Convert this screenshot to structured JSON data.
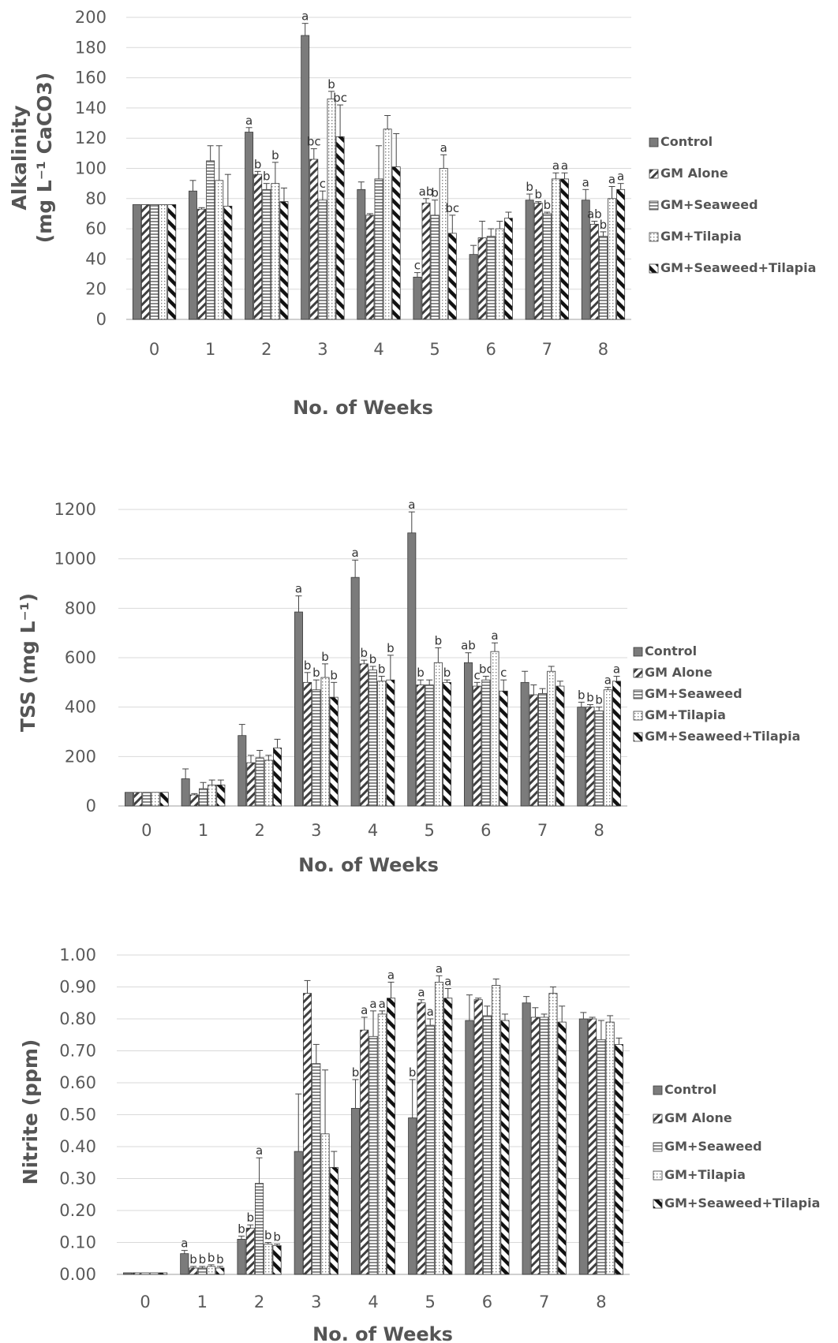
{
  "series_names": [
    "Control",
    "GM Alone",
    "GM+Seaweed",
    "GM+Tilapia",
    "GM+Seaweed+Tilapia"
  ],
  "chart_data": [
    {
      "type": "bar",
      "ylabel_line1": "Alkalinity",
      "ylabel_line2": "(mg L⁻¹ CaCO3)",
      "xlabel": "No. of Weeks",
      "categories": [
        "0",
        "1",
        "2",
        "3",
        "4",
        "5",
        "6",
        "7",
        "8"
      ],
      "ylim": [
        0,
        200
      ],
      "yticks": [
        0,
        20,
        40,
        60,
        80,
        100,
        120,
        140,
        160,
        180,
        200
      ],
      "tick_decimals": 0,
      "legend_position": "right",
      "grid": true,
      "series": [
        {
          "name": "Control",
          "values": [
            76,
            85,
            124,
            188,
            86,
            28,
            43,
            79,
            79
          ],
          "errors": [
            0,
            7,
            3,
            8,
            5,
            3,
            6,
            4,
            7
          ],
          "labels": [
            "",
            "",
            "a",
            "a",
            "",
            "c",
            "",
            "b",
            "a"
          ]
        },
        {
          "name": "GM Alone",
          "values": [
            76,
            73,
            96,
            106,
            69,
            77,
            54,
            77,
            63
          ],
          "errors": [
            0,
            1,
            2,
            7,
            1,
            3,
            11,
            1,
            2
          ],
          "labels": [
            "",
            "",
            "b",
            "bc",
            "",
            "ab",
            "",
            "b",
            "ab"
          ]
        },
        {
          "name": "GM+Seaweed",
          "values": [
            76,
            105,
            86,
            79,
            93,
            69,
            55,
            70,
            55
          ],
          "errors": [
            0,
            10,
            4,
            6,
            22,
            10,
            5,
            1,
            3
          ],
          "labels": [
            "",
            "",
            "b",
            "c",
            "",
            "b",
            "",
            "b",
            "b"
          ]
        },
        {
          "name": "GM+Tilapia",
          "values": [
            76,
            92,
            90,
            146,
            126,
            100,
            60,
            93,
            80
          ],
          "errors": [
            0,
            23,
            14,
            5,
            9,
            9,
            5,
            4,
            8
          ],
          "labels": [
            "",
            "",
            "b",
            "b",
            "",
            "a",
            "",
            "a",
            "a"
          ]
        },
        {
          "name": "GM+Seaweed+Tilapia",
          "values": [
            76,
            75,
            78,
            121,
            101,
            57,
            67,
            93,
            86
          ],
          "errors": [
            0,
            21,
            9,
            21,
            22,
            12,
            4,
            4,
            4
          ],
          "labels": [
            "",
            "",
            "",
            "bc",
            "",
            "bc",
            "",
            "a",
            "a"
          ]
        }
      ]
    },
    {
      "type": "bar",
      "ylabel": "TSS (mg L⁻¹)",
      "xlabel": "No. of Weeks",
      "categories": [
        "0",
        "1",
        "2",
        "3",
        "4",
        "5",
        "6",
        "7",
        "8"
      ],
      "ylim": [
        0,
        1200
      ],
      "yticks": [
        0,
        200,
        400,
        600,
        800,
        1000,
        1200
      ],
      "tick_decimals": 0,
      "legend_position": "right",
      "grid": true,
      "series": [
        {
          "name": "Control",
          "values": [
            55,
            110,
            285,
            785,
            925,
            1105,
            580,
            500,
            400
          ],
          "errors": [
            0,
            40,
            45,
            65,
            70,
            85,
            40,
            45,
            20
          ],
          "labels": [
            "",
            "",
            "",
            "a",
            "a",
            "a",
            "ab",
            "",
            "b"
          ]
        },
        {
          "name": "GM Alone",
          "values": [
            55,
            45,
            175,
            500,
            575,
            490,
            485,
            450,
            400
          ],
          "errors": [
            0,
            5,
            30,
            40,
            15,
            20,
            15,
            40,
            10
          ],
          "labels": [
            "",
            "",
            "",
            "b",
            "b",
            "b",
            "c",
            "",
            "b"
          ]
        },
        {
          "name": "GM+Seaweed",
          "values": [
            55,
            70,
            195,
            470,
            550,
            490,
            510,
            455,
            385
          ],
          "errors": [
            0,
            25,
            30,
            40,
            15,
            20,
            15,
            20,
            15
          ],
          "labels": [
            "",
            "",
            "",
            "b",
            "b",
            "",
            "bc",
            "",
            "b"
          ]
        },
        {
          "name": "GM+Tilapia",
          "values": [
            55,
            85,
            185,
            520,
            505,
            580,
            625,
            545,
            470
          ],
          "errors": [
            0,
            20,
            20,
            55,
            20,
            60,
            35,
            20,
            10
          ],
          "labels": [
            "",
            "",
            "",
            "b",
            "b",
            "b",
            "a",
            "",
            "a"
          ]
        },
        {
          "name": "GM+Seaweed+Tilapia",
          "values": [
            55,
            85,
            235,
            440,
            510,
            500,
            465,
            485,
            505
          ],
          "errors": [
            0,
            20,
            35,
            60,
            100,
            10,
            45,
            20,
            20
          ],
          "labels": [
            "",
            "",
            "",
            "b",
            "b",
            "b",
            "c",
            "",
            "a"
          ]
        }
      ]
    },
    {
      "type": "bar",
      "ylabel": "Nitrite (ppm)",
      "xlabel": "No. of Weeks",
      "categories": [
        "0",
        "1",
        "2",
        "3",
        "4",
        "5",
        "6",
        "7",
        "8"
      ],
      "ylim": [
        0,
        1.0
      ],
      "yticks": [
        0,
        0.1,
        0.2,
        0.3,
        0.4,
        0.5,
        0.6,
        0.7,
        0.8,
        0.9,
        1.0
      ],
      "tick_decimals": 2,
      "legend_position": "right",
      "grid": true,
      "series": [
        {
          "name": "Control",
          "values": [
            0.005,
            0.065,
            0.11,
            0.385,
            0.52,
            0.49,
            0.795,
            0.85,
            0.8
          ],
          "errors": [
            0,
            0.01,
            0.01,
            0.18,
            0.09,
            0.12,
            0.08,
            0.02,
            0.02
          ],
          "labels": [
            "",
            "a",
            "b",
            "",
            "b",
            "b",
            "",
            "",
            ""
          ]
        },
        {
          "name": "GM Alone",
          "values": [
            0.005,
            0.02,
            0.145,
            0.88,
            0.765,
            0.85,
            0.86,
            0.805,
            0.8
          ],
          "errors": [
            0,
            0.005,
            0.01,
            0.04,
            0.04,
            0.01,
            0.005,
            0.03,
            0.005
          ],
          "labels": [
            "",
            "b",
            "b",
            "",
            "a",
            "a",
            "",
            "",
            ""
          ]
        },
        {
          "name": "GM+Seaweed",
          "values": [
            0.005,
            0.02,
            0.285,
            0.66,
            0.745,
            0.78,
            0.81,
            0.805,
            0.735
          ],
          "errors": [
            0,
            0.005,
            0.08,
            0.06,
            0.08,
            0.02,
            0.03,
            0.01,
            0.06
          ],
          "labels": [
            "",
            "b",
            "a",
            "",
            "a",
            "a",
            "",
            "",
            ""
          ]
        },
        {
          "name": "GM+Tilapia",
          "values": [
            0.005,
            0.025,
            0.095,
            0.44,
            0.815,
            0.915,
            0.905,
            0.88,
            0.79
          ],
          "errors": [
            0,
            0.005,
            0.005,
            0.2,
            0.01,
            0.02,
            0.02,
            0.02,
            0.02
          ],
          "labels": [
            "",
            "b",
            "b",
            "",
            "a",
            "a",
            "",
            "",
            ""
          ]
        },
        {
          "name": "GM+Seaweed+Tilapia",
          "values": [
            0.005,
            0.02,
            0.09,
            0.335,
            0.865,
            0.865,
            0.795,
            0.79,
            0.72
          ],
          "errors": [
            0,
            0.005,
            0.005,
            0.05,
            0.05,
            0.03,
            0.02,
            0.05,
            0.02
          ],
          "labels": [
            "",
            "b",
            "b",
            "",
            "a",
            "a",
            "",
            "",
            ""
          ]
        }
      ]
    }
  ]
}
